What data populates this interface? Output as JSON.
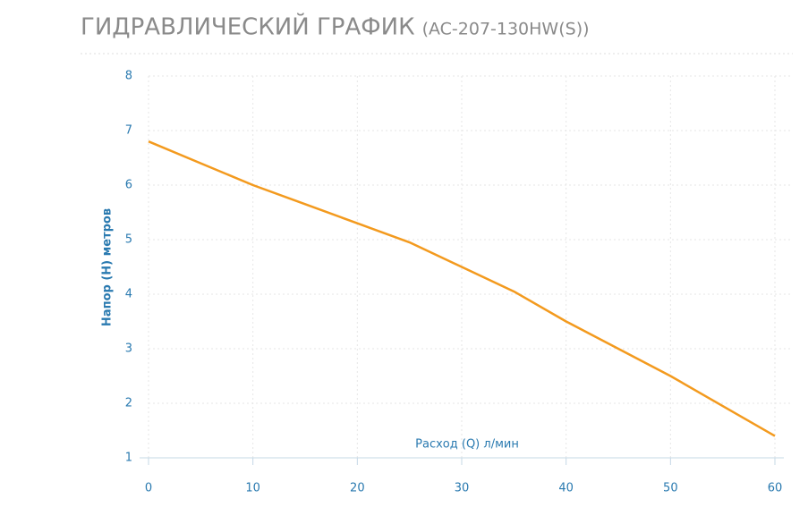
{
  "chart_data": {
    "type": "line",
    "title": "ГИДРАВЛИЧЕСКИЙ ГРАФИК",
    "subtitle": "(AC-207-130HW(S))",
    "x_label": "Расход (Q) л/мин",
    "y_label": "Напор (H) метров",
    "x": [
      0,
      5,
      10,
      15,
      20,
      25,
      30,
      35,
      40,
      45,
      50,
      55,
      60
    ],
    "series": [
      {
        "color": "#f39a1e",
        "values": [
          6.8,
          6.4,
          6.0,
          5.65,
          5.3,
          4.95,
          4.5,
          4.05,
          3.5,
          3.0,
          2.5,
          1.95,
          1.4
        ]
      }
    ],
    "xlim": [
      0,
      60
    ],
    "xticks": [
      0,
      10,
      20,
      30,
      40,
      50,
      60
    ],
    "ylim": [
      1,
      8
    ],
    "yticks": [
      1,
      2,
      3,
      4,
      5,
      6,
      7,
      8
    ],
    "grid": true
  }
}
